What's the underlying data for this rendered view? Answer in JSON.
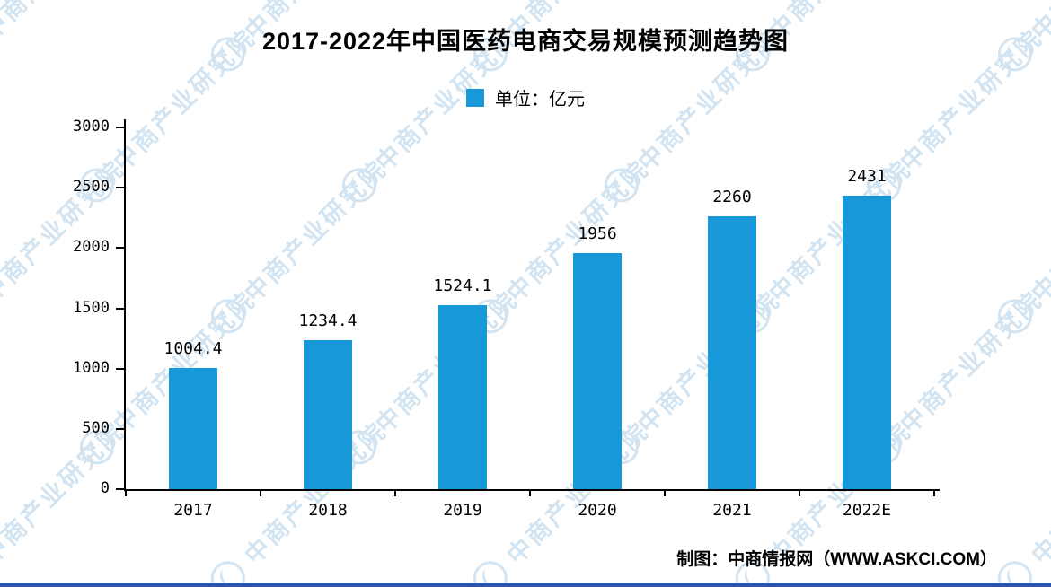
{
  "page": {
    "watermark_text": "中商产业研究院",
    "attribution": "制图：中商情报网（WWW.ASKCI.COM）",
    "colors": {
      "bar": "#1798d8",
      "watermark": "#aecfe6",
      "footer_bar": "#2a55aa",
      "axis": "#000000"
    }
  },
  "chart_data": {
    "type": "bar",
    "title": "2017-2022年中国医药电商交易规模预测趋势图",
    "legend_label": "单位：亿元",
    "legend_position": "top-center",
    "categories": [
      "2017",
      "2018",
      "2019",
      "2020",
      "2021",
      "2022E"
    ],
    "values": [
      1004.4,
      1234.4,
      1524.1,
      1956,
      2260,
      2431
    ],
    "value_labels": [
      "1004.4",
      "1234.4",
      "1524.1",
      "1956",
      "2260",
      "2431"
    ],
    "ylabel": "",
    "xlabel": "",
    "ylim": [
      0,
      3000
    ],
    "yticks": [
      0,
      500,
      1000,
      1500,
      2000,
      2500,
      3000
    ],
    "grid": false
  }
}
